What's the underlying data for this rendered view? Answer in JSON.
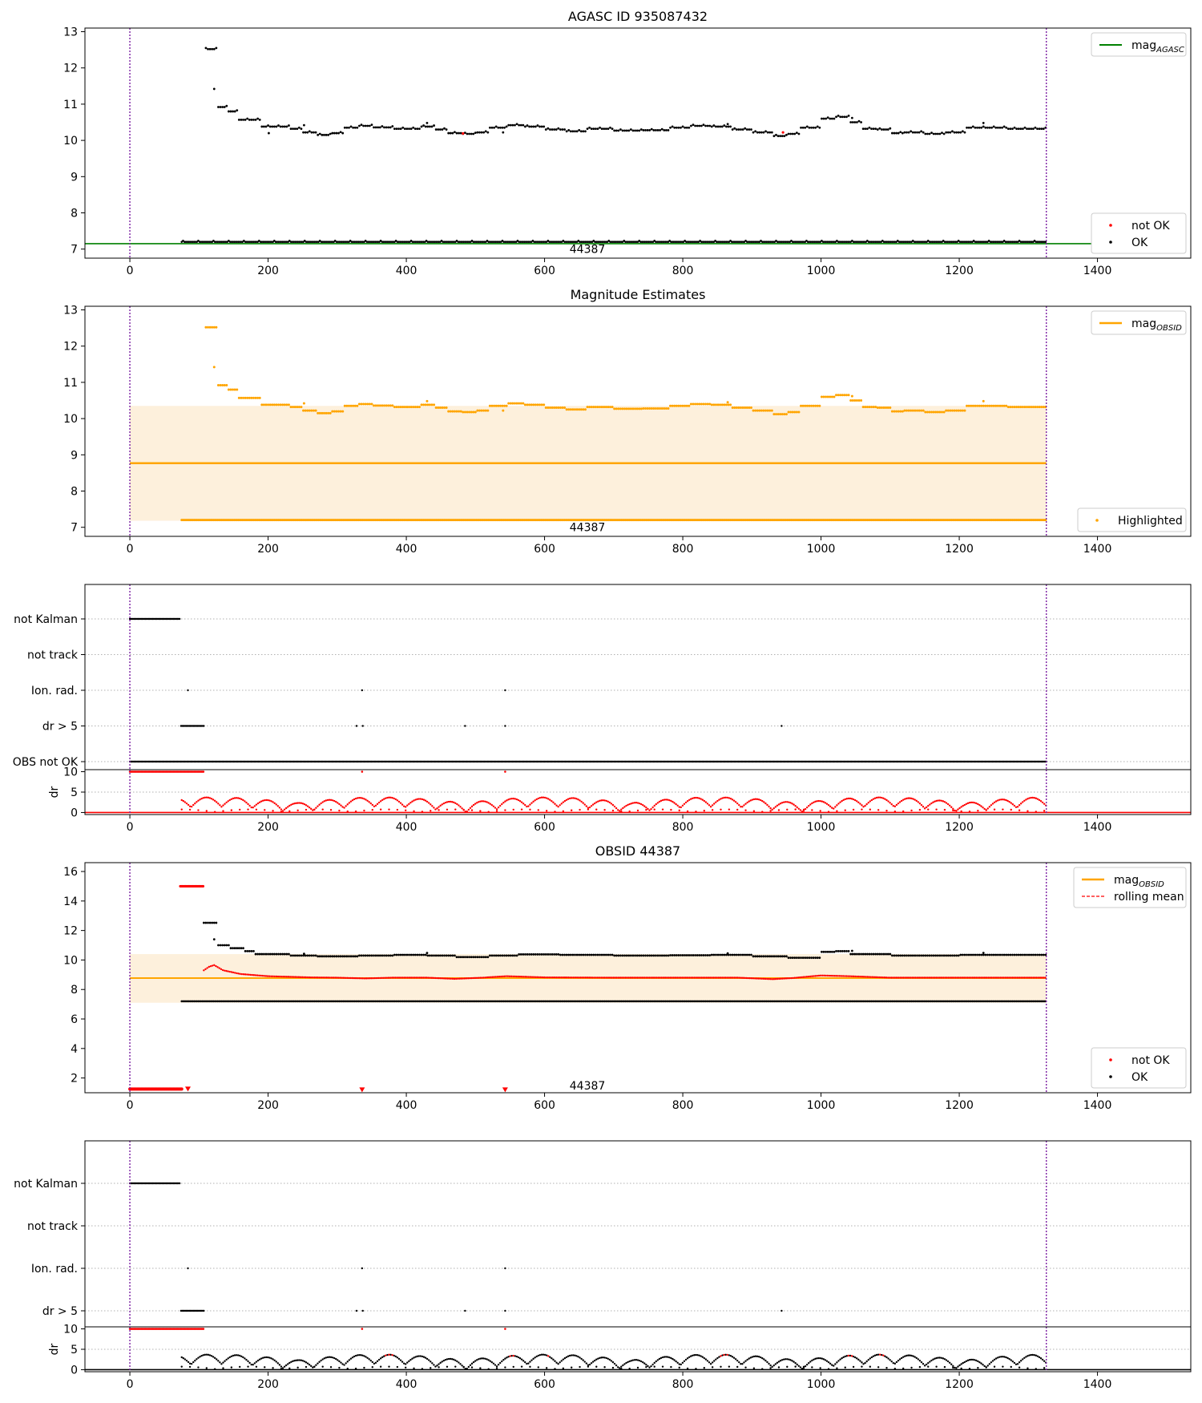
{
  "figure": {
    "vline_color": "#7b1fa2",
    "colors": {
      "ok": "#000000",
      "not_ok": "#ff0000",
      "agasc": "#008000",
      "obsid": "#ffa500",
      "band": "#fdf0dc",
      "rolling": "#ff0000"
    }
  },
  "chart_data": [
    {
      "id": "agasc",
      "type": "scatter",
      "title": "AGASC ID 935087432",
      "xlim": [
        -65,
        1535
      ],
      "ylim": [
        6.75,
        13.1
      ],
      "xticks": [
        0,
        200,
        400,
        600,
        800,
        1000,
        1200,
        1400
      ],
      "yticks": [
        7,
        8,
        9,
        10,
        11,
        12,
        13
      ],
      "vlines": [
        0,
        1326
      ],
      "annotation": {
        "text": "44387",
        "x": 662,
        "y": 7.0
      },
      "mag_agasc": {
        "value": 7.15,
        "x_range": [
          -65,
          1392
        ]
      },
      "upper_series": [
        [
          110,
          12.52
        ],
        [
          125,
          10.92
        ],
        [
          140,
          10.8
        ],
        [
          155,
          10.57
        ],
        [
          170,
          10.57
        ],
        [
          190,
          10.38
        ],
        [
          210,
          10.38
        ],
        [
          230,
          10.32
        ],
        [
          250,
          10.22
        ],
        [
          270,
          10.15
        ],
        [
          290,
          10.2
        ],
        [
          310,
          10.35
        ],
        [
          330,
          10.4
        ],
        [
          350,
          10.36
        ],
        [
          380,
          10.32
        ],
        [
          420,
          10.38
        ],
        [
          440,
          10.3
        ],
        [
          460,
          10.2
        ],
        [
          480,
          10.18
        ],
        [
          500,
          10.22
        ],
        [
          520,
          10.35
        ],
        [
          545,
          10.42
        ],
        [
          570,
          10.38
        ],
        [
          600,
          10.3
        ],
        [
          630,
          10.25
        ],
        [
          660,
          10.32
        ],
        [
          700,
          10.27
        ],
        [
          740,
          10.28
        ],
        [
          780,
          10.35
        ],
        [
          810,
          10.4
        ],
        [
          840,
          10.38
        ],
        [
          870,
          10.3
        ],
        [
          900,
          10.22
        ],
        [
          930,
          10.12
        ],
        [
          950,
          10.18
        ],
        [
          970,
          10.35
        ],
        [
          1000,
          10.6
        ],
        [
          1020,
          10.65
        ],
        [
          1040,
          10.5
        ],
        [
          1060,
          10.32
        ],
        [
          1080,
          10.3
        ],
        [
          1100,
          10.2
        ],
        [
          1120,
          10.22
        ],
        [
          1150,
          10.18
        ],
        [
          1180,
          10.22
        ],
        [
          1210,
          10.35
        ],
        [
          1240,
          10.35
        ],
        [
          1270,
          10.32
        ],
        [
          1300,
          10.32
        ],
        [
          1326,
          10.3
        ]
      ],
      "upper_not_ok": [
        [
          482,
          10.19
        ],
        [
          945,
          10.22
        ]
      ],
      "lower_series": {
        "value": 7.2,
        "x_range": [
          75,
          1326
        ]
      },
      "legends": [
        {
          "position": "upper-right",
          "entries": [
            {
              "label": "mag",
              "sub": "AGASC",
              "kind": "line"
            }
          ]
        },
        {
          "position": "lower-right",
          "entries": [
            {
              "label": "not OK",
              "kind": "dot-red"
            },
            {
              "label": "OK",
              "kind": "dot-black"
            }
          ]
        }
      ]
    },
    {
      "id": "mag",
      "type": "scatter",
      "title": "Magnitude Estimates",
      "xlim": [
        -65,
        1535
      ],
      "ylim": [
        6.75,
        13.1
      ],
      "xticks": [
        0,
        200,
        400,
        600,
        800,
        1000,
        1200,
        1400
      ],
      "yticks": [
        7,
        8,
        9,
        10,
        11,
        12,
        13
      ],
      "vlines": [
        0,
        1326
      ],
      "annotation": {
        "text": "44387",
        "x": 662,
        "y": 7.0
      },
      "band": {
        "x_range": [
          0,
          1326
        ],
        "y_range": [
          7.18,
          10.35
        ]
      },
      "mag_obsid": {
        "value": 8.77,
        "x_range": [
          0,
          1326
        ]
      },
      "legends": [
        {
          "position": "upper-right",
          "entries": [
            {
              "label": "mag",
              "sub": "OBSID",
              "kind": "line-orange"
            }
          ]
        },
        {
          "position": "lower-right",
          "entries": [
            {
              "label": "Highlighted",
              "kind": "dot-orange"
            }
          ]
        }
      ]
    },
    {
      "id": "flags1",
      "type": "scatter",
      "categories": [
        "not Kalman",
        "not track",
        "Ion. rad.",
        "dr > 5",
        "OBS not OK"
      ],
      "xlim": [
        -65,
        1535
      ],
      "vlines": [
        0,
        1326
      ],
      "flags": {
        "not Kalman": {
          "ranges": [
            [
              0,
              73
            ]
          ],
          "points": []
        },
        "not track": {
          "ranges": [],
          "points": []
        },
        "Ion. rad.": {
          "ranges": [],
          "points": [
            84,
            336,
            543
          ]
        },
        "dr > 5": {
          "ranges": [
            [
              74,
              107
            ]
          ],
          "points": [
            328,
            337,
            485,
            543,
            943
          ]
        },
        "OBS not OK": {
          "ranges": [
            [
              0,
              1326
            ]
          ],
          "points": []
        }
      }
    },
    {
      "id": "dr1",
      "type": "scatter",
      "ylabel": "dr",
      "xlim": [
        -65,
        1535
      ],
      "ylim": [
        -0.5,
        10.5
      ],
      "xticks": [
        0,
        200,
        400,
        600,
        800,
        1000,
        1200,
        1400
      ],
      "yticks": [
        0,
        5,
        10
      ],
      "vlines": [
        0,
        1326
      ]
    },
    {
      "id": "obsid",
      "type": "scatter",
      "title": "OBSID 44387",
      "xlim": [
        -65,
        1535
      ],
      "ylim": [
        1,
        16.6
      ],
      "xticks": [
        0,
        200,
        400,
        600,
        800,
        1000,
        1200,
        1400
      ],
      "yticks": [
        2,
        4,
        6,
        8,
        10,
        12,
        14,
        16
      ],
      "vlines": [
        0,
        1326
      ],
      "annotation": {
        "text": "44387",
        "x": 662,
        "y": 1.5
      },
      "band": {
        "x_range": [
          0,
          1326
        ],
        "y_range": [
          7.1,
          10.4
        ]
      },
      "mag_obsid": {
        "value": 8.77,
        "x_range": [
          0,
          1326
        ]
      },
      "red_top": {
        "value": 15.0,
        "x_range": [
          73,
          107
        ]
      },
      "red_bottom": {
        "value": 1.25,
        "x_range": [
          0,
          76
        ]
      },
      "red_markers": [
        [
          84,
          1.25
        ],
        [
          336,
          1.2
        ],
        [
          543,
          1.2
        ]
      ],
      "upper_series": [
        [
          107,
          12.52
        ],
        [
          125,
          11.0
        ],
        [
          145,
          10.8
        ],
        [
          165,
          10.6
        ],
        [
          180,
          10.4
        ],
        [
          230,
          10.3
        ],
        [
          270,
          10.25
        ],
        [
          330,
          10.3
        ],
        [
          380,
          10.35
        ],
        [
          430,
          10.3
        ],
        [
          470,
          10.2
        ],
        [
          520,
          10.3
        ],
        [
          560,
          10.38
        ],
        [
          620,
          10.35
        ],
        [
          700,
          10.3
        ],
        [
          780,
          10.32
        ],
        [
          840,
          10.35
        ],
        [
          900,
          10.25
        ],
        [
          950,
          10.15
        ],
        [
          1000,
          10.55
        ],
        [
          1020,
          10.6
        ],
        [
          1040,
          10.4
        ],
        [
          1100,
          10.3
        ],
        [
          1200,
          10.35
        ],
        [
          1326,
          10.3
        ]
      ],
      "rolling_series": [
        [
          107,
          9.3
        ],
        [
          115,
          9.55
        ],
        [
          122,
          9.65
        ],
        [
          135,
          9.3
        ],
        [
          160,
          9.05
        ],
        [
          200,
          8.9
        ],
        [
          260,
          8.82
        ],
        [
          300,
          8.8
        ],
        [
          340,
          8.75
        ],
        [
          380,
          8.8
        ],
        [
          430,
          8.8
        ],
        [
          470,
          8.72
        ],
        [
          510,
          8.8
        ],
        [
          545,
          8.9
        ],
        [
          600,
          8.82
        ],
        [
          700,
          8.8
        ],
        [
          800,
          8.8
        ],
        [
          880,
          8.8
        ],
        [
          930,
          8.7
        ],
        [
          960,
          8.78
        ],
        [
          1000,
          8.95
        ],
        [
          1040,
          8.9
        ],
        [
          1100,
          8.8
        ],
        [
          1200,
          8.8
        ],
        [
          1326,
          8.8
        ]
      ],
      "lower_series": {
        "value": 7.2,
        "x_range": [
          75,
          1326
        ]
      },
      "legends": [
        {
          "position": "upper-right",
          "entries": [
            {
              "label": "mag",
              "sub": "OBSID",
              "kind": "line-orange"
            },
            {
              "label": "rolling mean",
              "kind": "dashed-red"
            }
          ]
        },
        {
          "position": "lower-right",
          "entries": [
            {
              "label": "not OK",
              "kind": "dot-red"
            },
            {
              "label": "OK",
              "kind": "dot-black"
            }
          ]
        }
      ]
    },
    {
      "id": "flags2",
      "type": "scatter",
      "categories": [
        "not Kalman",
        "not track",
        "Ion. rad.",
        "dr > 5"
      ],
      "xlim": [
        -65,
        1535
      ],
      "vlines": [
        0,
        1326
      ],
      "flags": {
        "not Kalman": {
          "ranges": [
            [
              0,
              73
            ]
          ],
          "points": []
        },
        "not track": {
          "ranges": [],
          "points": []
        },
        "Ion. rad.": {
          "ranges": [],
          "points": [
            84,
            336,
            543
          ]
        },
        "dr > 5": {
          "ranges": [
            [
              74,
              107
            ]
          ],
          "points": [
            328,
            337,
            485,
            543,
            943
          ]
        }
      }
    },
    {
      "id": "dr2",
      "type": "scatter",
      "ylabel": "dr",
      "xlim": [
        -65,
        1535
      ],
      "ylim": [
        -0.5,
        10.5
      ],
      "xticks": [
        0,
        200,
        400,
        600,
        800,
        1000,
        1200,
        1400
      ],
      "yticks": [
        0,
        5,
        10
      ],
      "vlines": [
        0,
        1326
      ]
    }
  ]
}
